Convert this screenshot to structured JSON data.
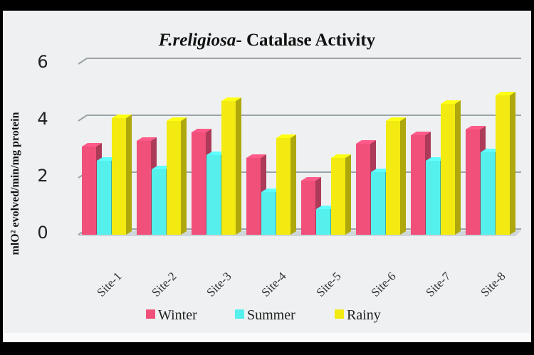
{
  "chart_data": {
    "type": "bar",
    "title_italic": "F.religiosa",
    "title_rest": "- Catalase Activity",
    "ylabel": "mlO² evolved/min/mg protein",
    "xlabel": "",
    "ylim": [
      0,
      6
    ],
    "yticks": [
      "0",
      "2",
      "4",
      "6"
    ],
    "grid": true,
    "three_d": true,
    "legend_position": "bottom",
    "categories": [
      "Site-1",
      "Site-2",
      "Site-3",
      "Site-4",
      "Site-5",
      "Site-6",
      "Site-7",
      "Site-8"
    ],
    "series": [
      {
        "name": "Winter",
        "color": "#f0507a",
        "values": [
          3.1,
          3.3,
          3.6,
          2.7,
          1.9,
          3.2,
          3.5,
          3.7
        ]
      },
      {
        "name": "Summer",
        "color": "#55f0ec",
        "values": [
          2.6,
          2.3,
          2.8,
          1.5,
          0.9,
          2.2,
          2.6,
          2.9
        ]
      },
      {
        "name": "Rainy",
        "color": "#f2ea10",
        "values": [
          4.1,
          4.0,
          4.7,
          3.4,
          2.7,
          4.0,
          4.6,
          4.9
        ]
      }
    ]
  }
}
